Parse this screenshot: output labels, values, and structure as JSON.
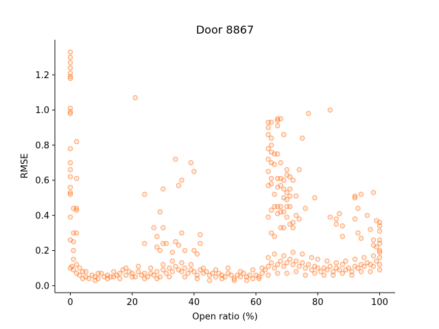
{
  "chart_data": {
    "type": "scatter",
    "title": "Door 8867",
    "xlabel": "Open ratio (%)",
    "ylabel": "RMSE",
    "xlim": [
      -5,
      105
    ],
    "ylim": [
      -0.04,
      1.4
    ],
    "xticks": [
      0,
      20,
      40,
      60,
      80,
      100
    ],
    "yticks": [
      0.0,
      0.2,
      0.4,
      0.6,
      0.8,
      1.0,
      1.2
    ],
    "ytick_labels": [
      "0.0",
      "0.2",
      "0.4",
      "0.6",
      "0.8",
      "1.0",
      "1.2"
    ],
    "grid": false,
    "marker_color": "#ff5a00",
    "points": [
      [
        0,
        1.33
      ],
      [
        0,
        1.3
      ],
      [
        0,
        1.27
      ],
      [
        0,
        1.24
      ],
      [
        0,
        1.21
      ],
      [
        0,
        1.19
      ],
      [
        0,
        1.18
      ],
      [
        0,
        1.01
      ],
      [
        0,
        0.99
      ],
      [
        0,
        0.98
      ],
      [
        0,
        0.78
      ],
      [
        0,
        0.7
      ],
      [
        0,
        0.66
      ],
      [
        0,
        0.62
      ],
      [
        0,
        0.56
      ],
      [
        0,
        0.53
      ],
      [
        0,
        0.52
      ],
      [
        0,
        0.39
      ],
      [
        0,
        0.26
      ],
      [
        0.5,
        0.11
      ],
      [
        0,
        0.1
      ],
      [
        1,
        0.44
      ],
      [
        1,
        0.3
      ],
      [
        1,
        0.25
      ],
      [
        1,
        0.2
      ],
      [
        1,
        0.15
      ],
      [
        2,
        0.82
      ],
      [
        2,
        0.61
      ],
      [
        2,
        0.44
      ],
      [
        2,
        0.43
      ],
      [
        2,
        0.3
      ],
      [
        21,
        1.07
      ],
      [
        24,
        0.52
      ],
      [
        24,
        0.24
      ],
      [
        27,
        0.33
      ],
      [
        28,
        0.28
      ],
      [
        28,
        0.22
      ],
      [
        29,
        0.42
      ],
      [
        29,
        0.2
      ],
      [
        30,
        0.55
      ],
      [
        30,
        0.33
      ],
      [
        30,
        0.24
      ],
      [
        31,
        0.24
      ],
      [
        33,
        0.19
      ],
      [
        34,
        0.72
      ],
      [
        34,
        0.25
      ],
      [
        35,
        0.57
      ],
      [
        35,
        0.23
      ],
      [
        36,
        0.6
      ],
      [
        36,
        0.3
      ],
      [
        37,
        0.2
      ],
      [
        39,
        0.7
      ],
      [
        40,
        0.65
      ],
      [
        40,
        0.2
      ],
      [
        41,
        0.18
      ],
      [
        42,
        0.29
      ],
      [
        42,
        0.24
      ],
      [
        64,
        0.93
      ],
      [
        64,
        0.9
      ],
      [
        64,
        0.86
      ],
      [
        64,
        0.78
      ],
      [
        64,
        0.72
      ],
      [
        64,
        0.65
      ],
      [
        64,
        0.57
      ],
      [
        64,
        0.39
      ],
      [
        65,
        0.93
      ],
      [
        65,
        0.84
      ],
      [
        65,
        0.8
      ],
      [
        65,
        0.76
      ],
      [
        65,
        0.7
      ],
      [
        65,
        0.61
      ],
      [
        65,
        0.58
      ],
      [
        65,
        0.43
      ],
      [
        65,
        0.3
      ],
      [
        66,
        0.75
      ],
      [
        66,
        0.69
      ],
      [
        66,
        0.52
      ],
      [
        66,
        0.45
      ],
      [
        66,
        0.28
      ],
      [
        67,
        0.95
      ],
      [
        67,
        0.94
      ],
      [
        67,
        0.91
      ],
      [
        67,
        0.75
      ],
      [
        67,
        0.61
      ],
      [
        67,
        0.56
      ],
      [
        67,
        0.45
      ],
      [
        67,
        0.41
      ],
      [
        68,
        0.95
      ],
      [
        68,
        0.7
      ],
      [
        68,
        0.61
      ],
      [
        68,
        0.57
      ],
      [
        68,
        0.45
      ],
      [
        68,
        0.42
      ],
      [
        68,
        0.33
      ],
      [
        69,
        0.86
      ],
      [
        69,
        0.6
      ],
      [
        69,
        0.55
      ],
      [
        69,
        0.5
      ],
      [
        69,
        0.42
      ],
      [
        69,
        0.33
      ],
      [
        70,
        0.66
      ],
      [
        70,
        0.63
      ],
      [
        70,
        0.53
      ],
      [
        70,
        0.49
      ],
      [
        70,
        0.45
      ],
      [
        70,
        0.39
      ],
      [
        71,
        0.62
      ],
      [
        71,
        0.55
      ],
      [
        71,
        0.51
      ],
      [
        71,
        0.45
      ],
      [
        71,
        0.35
      ],
      [
        72,
        0.6
      ],
      [
        72,
        0.36
      ],
      [
        72,
        0.33
      ],
      [
        73,
        0.51
      ],
      [
        73,
        0.4
      ],
      [
        74,
        0.66
      ],
      [
        74,
        0.38
      ],
      [
        75,
        0.84
      ],
      [
        76,
        0.44
      ],
      [
        77,
        0.98
      ],
      [
        79,
        0.5
      ],
      [
        84,
        1.0
      ],
      [
        84,
        0.39
      ],
      [
        86,
        0.38
      ],
      [
        86,
        0.35
      ],
      [
        87,
        0.41
      ],
      [
        88,
        0.34
      ],
      [
        88,
        0.28
      ],
      [
        92,
        0.51
      ],
      [
        92,
        0.5
      ],
      [
        92,
        0.38
      ],
      [
        93,
        0.44
      ],
      [
        93,
        0.3
      ],
      [
        94,
        0.52
      ],
      [
        94,
        0.27
      ],
      [
        96,
        0.4
      ],
      [
        97,
        0.32
      ],
      [
        98,
        0.53
      ],
      [
        98,
        0.26
      ],
      [
        98,
        0.23
      ],
      [
        99,
        0.37
      ],
      [
        99,
        0.22
      ],
      [
        100,
        0.36
      ],
      [
        100,
        0.34
      ],
      [
        100,
        0.31
      ],
      [
        100,
        0.26
      ],
      [
        100,
        0.24
      ],
      [
        100,
        0.2
      ],
      [
        100,
        0.19
      ],
      [
        1,
        0.09
      ],
      [
        2,
        0.07
      ],
      [
        3,
        0.1
      ],
      [
        3,
        0.06
      ],
      [
        4,
        0.08
      ],
      [
        5,
        0.05
      ],
      [
        6,
        0.04
      ],
      [
        7,
        0.06
      ],
      [
        8,
        0.05
      ],
      [
        9,
        0.04
      ],
      [
        10,
        0.07
      ],
      [
        11,
        0.05
      ],
      [
        12,
        0.06
      ],
      [
        13,
        0.05
      ],
      [
        14,
        0.08
      ],
      [
        15,
        0.06
      ],
      [
        16,
        0.07
      ],
      [
        17,
        0.09
      ],
      [
        18,
        0.06
      ],
      [
        19,
        0.08
      ],
      [
        20,
        0.07
      ],
      [
        21,
        0.05
      ],
      [
        22,
        0.08
      ],
      [
        23,
        0.06
      ],
      [
        24,
        0.07
      ],
      [
        25,
        0.05
      ],
      [
        26,
        0.07
      ],
      [
        27,
        0.06
      ],
      [
        28,
        0.08
      ],
      [
        29,
        0.05
      ],
      [
        30,
        0.09
      ],
      [
        31,
        0.07
      ],
      [
        32,
        0.1
      ],
      [
        33,
        0.08
      ],
      [
        34,
        0.11
      ],
      [
        35,
        0.09
      ],
      [
        36,
        0.08
      ],
      [
        37,
        0.1
      ],
      [
        38,
        0.07
      ],
      [
        39,
        0.09
      ],
      [
        40,
        0.08
      ],
      [
        41,
        0.06
      ],
      [
        42,
        0.09
      ],
      [
        43,
        0.07
      ],
      [
        44,
        0.08
      ],
      [
        45,
        0.06
      ],
      [
        46,
        0.07
      ],
      [
        47,
        0.05
      ],
      [
        48,
        0.07
      ],
      [
        49,
        0.06
      ],
      [
        50,
        0.05
      ],
      [
        51,
        0.07
      ],
      [
        52,
        0.06
      ],
      [
        53,
        0.04
      ],
      [
        54,
        0.06
      ],
      [
        55,
        0.05
      ],
      [
        56,
        0.07
      ],
      [
        57,
        0.05
      ],
      [
        58,
        0.06
      ],
      [
        59,
        0.04
      ],
      [
        60,
        0.06
      ],
      [
        61,
        0.05
      ],
      [
        62,
        0.07
      ],
      [
        63,
        0.09
      ],
      [
        64,
        0.11
      ],
      [
        65,
        0.13
      ],
      [
        66,
        0.1
      ],
      [
        67,
        0.12
      ],
      [
        68,
        0.14
      ],
      [
        69,
        0.11
      ],
      [
        70,
        0.13
      ],
      [
        71,
        0.15
      ],
      [
        72,
        0.12
      ],
      [
        73,
        0.14
      ],
      [
        74,
        0.11
      ],
      [
        75,
        0.13
      ],
      [
        76,
        0.1
      ],
      [
        77,
        0.12
      ],
      [
        78,
        0.09
      ],
      [
        79,
        0.11
      ],
      [
        80,
        0.1
      ],
      [
        81,
        0.08
      ],
      [
        82,
        0.1
      ],
      [
        83,
        0.09
      ],
      [
        84,
        0.11
      ],
      [
        85,
        0.08
      ],
      [
        86,
        0.1
      ],
      [
        87,
        0.09
      ],
      [
        88,
        0.12
      ],
      [
        89,
        0.09
      ],
      [
        90,
        0.1
      ],
      [
        91,
        0.08
      ],
      [
        92,
        0.11
      ],
      [
        93,
        0.1
      ],
      [
        94,
        0.12
      ],
      [
        95,
        0.11
      ],
      [
        96,
        0.13
      ],
      [
        97,
        0.12
      ],
      [
        98,
        0.11
      ],
      [
        99,
        0.14
      ],
      [
        100,
        0.12
      ],
      [
        100,
        0.16
      ],
      [
        2,
        0.12
      ],
      [
        5,
        0.08
      ],
      [
        9,
        0.07
      ],
      [
        14,
        0.05
      ],
      [
        18,
        0.1
      ],
      [
        22,
        0.11
      ],
      [
        26,
        0.1
      ],
      [
        30,
        0.12
      ],
      [
        33,
        0.14
      ],
      [
        36,
        0.13
      ],
      [
        39,
        0.12
      ],
      [
        43,
        0.1
      ],
      [
        47,
        0.09
      ],
      [
        51,
        0.1
      ],
      [
        55,
        0.08
      ],
      [
        59,
        0.09
      ],
      [
        62,
        0.1
      ],
      [
        64,
        0.16
      ],
      [
        66,
        0.18
      ],
      [
        69,
        0.17
      ],
      [
        72,
        0.19
      ],
      [
        75,
        0.18
      ],
      [
        78,
        0.16
      ],
      [
        80,
        0.15
      ],
      [
        83,
        0.14
      ],
      [
        86,
        0.13
      ],
      [
        89,
        0.14
      ],
      [
        92,
        0.15
      ],
      [
        95,
        0.16
      ],
      [
        98,
        0.17
      ],
      [
        4,
        0.04
      ],
      [
        8,
        0.03
      ],
      [
        12,
        0.04
      ],
      [
        16,
        0.04
      ],
      [
        20,
        0.05
      ],
      [
        24,
        0.04
      ],
      [
        28,
        0.04
      ],
      [
        32,
        0.05
      ],
      [
        37,
        0.05
      ],
      [
        41,
        0.04
      ],
      [
        45,
        0.03
      ],
      [
        49,
        0.04
      ],
      [
        53,
        0.03
      ],
      [
        57,
        0.03
      ],
      [
        61,
        0.04
      ],
      [
        64,
        0.06
      ],
      [
        67,
        0.07
      ],
      [
        70,
        0.07
      ],
      [
        73,
        0.08
      ],
      [
        76,
        0.06
      ],
      [
        79,
        0.07
      ],
      [
        82,
        0.06
      ],
      [
        85,
        0.06
      ],
      [
        88,
        0.07
      ],
      [
        91,
        0.06
      ],
      [
        94,
        0.08
      ],
      [
        97,
        0.08
      ],
      [
        100,
        0.09
      ]
    ]
  }
}
